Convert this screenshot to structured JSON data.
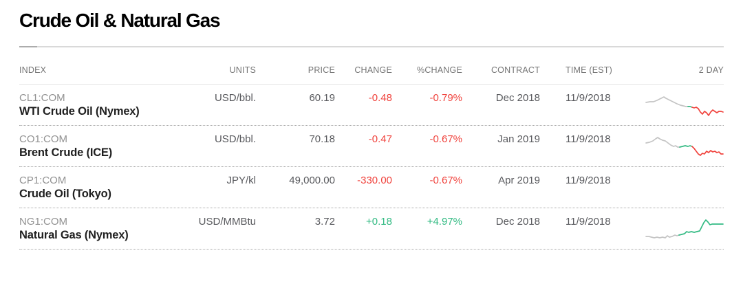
{
  "page": {
    "title": "Crude Oil & Natural Gas"
  },
  "table": {
    "columns": {
      "index": "INDEX",
      "units": "UNITS",
      "price": "PRICE",
      "change": "CHANGE",
      "pct_change": "%CHANGE",
      "contract": "CONTRACT",
      "time": "TIME (EST)",
      "two_day": "2 DAY"
    },
    "rows": [
      {
        "ticker": "CL1:COM",
        "name": "WTI Crude Oil (Nymex)",
        "units": "USD/bbl.",
        "price": "60.19",
        "change": "-0.48",
        "pct_change": "-0.79%",
        "direction": "down",
        "contract": "Dec 2018",
        "time": "11/9/2018",
        "sparkline_id": "wti"
      },
      {
        "ticker": "CO1:COM",
        "name": "Brent Crude (ICE)",
        "units": "USD/bbl.",
        "price": "70.18",
        "change": "-0.47",
        "pct_change": "-0.67%",
        "direction": "down",
        "contract": "Jan 2019",
        "time": "11/9/2018",
        "sparkline_id": "brent"
      },
      {
        "ticker": "CP1:COM",
        "name": "Crude Oil (Tokyo)",
        "units": "JPY/kl",
        "price": "49,000.00",
        "change": "-330.00",
        "pct_change": "-0.67%",
        "direction": "down",
        "contract": "Apr 2019",
        "time": "11/9/2018",
        "sparkline_id": null
      },
      {
        "ticker": "NG1:COM",
        "name": "Natural Gas (Nymex)",
        "units": "USD/MMBtu",
        "price": "3.72",
        "change": "+0.18",
        "pct_change": "+4.97%",
        "direction": "up",
        "contract": "Dec 2018",
        "time": "11/9/2018",
        "sparkline_id": "natgas"
      }
    ]
  },
  "colors": {
    "up": "#31ba82",
    "down": "#f0423c",
    "gray": "#c4c4c4",
    "green": "#31ba82",
    "red": "#f0423c"
  },
  "chart_data": [
    {
      "id": "wti",
      "type": "line",
      "title": "WTI Crude Oil (Nymex) 2 day trend",
      "trend": "down",
      "axes": "none",
      "segments": [
        {
          "color": "gray",
          "points": [
            [
              2,
              13
            ],
            [
              8,
              12
            ],
            [
              13,
              12
            ],
            [
              18,
              10
            ],
            [
              24,
              7
            ],
            [
              28,
              5
            ],
            [
              31,
              7
            ],
            [
              35,
              9
            ],
            [
              39,
              11
            ],
            [
              43,
              13
            ],
            [
              47,
              15
            ],
            [
              52,
              17
            ],
            [
              56,
              18
            ],
            [
              60,
              19
            ],
            [
              63,
              19
            ]
          ]
        },
        {
          "color": "green",
          "points": [
            [
              63,
              19
            ],
            [
              66,
              19
            ],
            [
              69,
              20
            ]
          ]
        },
        {
          "color": "red",
          "points": [
            [
              69,
              20
            ],
            [
              72,
              21
            ],
            [
              75,
              20
            ],
            [
              78,
              22
            ],
            [
              81,
              27
            ],
            [
              84,
              30
            ],
            [
              87,
              26
            ],
            [
              90,
              28
            ],
            [
              93,
              32
            ],
            [
              96,
              27
            ],
            [
              99,
              24
            ],
            [
              102,
              26
            ],
            [
              105,
              28
            ],
            [
              108,
              26
            ],
            [
              111,
              26
            ],
            [
              114,
              27
            ]
          ]
        }
      ]
    },
    {
      "id": "brent",
      "type": "line",
      "title": "Brent Crude (ICE) 2 day trend",
      "trend": "down",
      "axes": "none",
      "segments": [
        {
          "color": "gray",
          "points": [
            [
              2,
              12
            ],
            [
              7,
              11
            ],
            [
              12,
              9
            ],
            [
              16,
              6
            ],
            [
              19,
              4
            ],
            [
              22,
              6
            ],
            [
              26,
              8
            ],
            [
              30,
              9
            ],
            [
              34,
              12
            ],
            [
              38,
              15
            ],
            [
              42,
              17
            ],
            [
              45,
              16
            ],
            [
              48,
              18
            ],
            [
              51,
              18
            ]
          ]
        },
        {
          "color": "green",
          "points": [
            [
              51,
              18
            ],
            [
              55,
              17
            ],
            [
              59,
              16
            ],
            [
              63,
              17
            ],
            [
              66,
              16
            ],
            [
              69,
              17
            ]
          ]
        },
        {
          "color": "red",
          "points": [
            [
              69,
              17
            ],
            [
              72,
              20
            ],
            [
              75,
              24
            ],
            [
              78,
              28
            ],
            [
              81,
              30
            ],
            [
              84,
              27
            ],
            [
              87,
              28
            ],
            [
              90,
              24
            ],
            [
              93,
              26
            ],
            [
              96,
              23
            ],
            [
              99,
              25
            ],
            [
              102,
              24
            ],
            [
              105,
              26
            ],
            [
              108,
              25
            ],
            [
              111,
              28
            ],
            [
              114,
              28
            ]
          ]
        }
      ]
    },
    {
      "id": "natgas",
      "type": "line",
      "title": "Natural Gas (Nymex) 2 day trend",
      "trend": "up",
      "axes": "none",
      "segments": [
        {
          "color": "gray",
          "points": [
            [
              2,
              28
            ],
            [
              6,
              28
            ],
            [
              10,
              29
            ],
            [
              14,
              30
            ],
            [
              18,
              29
            ],
            [
              22,
              30
            ],
            [
              26,
              29
            ],
            [
              30,
              30
            ],
            [
              33,
              27
            ],
            [
              36,
              29
            ],
            [
              40,
              28
            ],
            [
              44,
              26
            ],
            [
              47,
              27
            ],
            [
              50,
              26
            ]
          ]
        },
        {
          "color": "green",
          "points": [
            [
              50,
              26
            ],
            [
              54,
              25
            ],
            [
              58,
              24
            ],
            [
              61,
              21
            ],
            [
              64,
              22
            ],
            [
              68,
              21
            ],
            [
              72,
              22
            ],
            [
              76,
              21
            ],
            [
              80,
              20
            ],
            [
              83,
              14
            ],
            [
              86,
              8
            ],
            [
              89,
              4
            ],
            [
              92,
              7
            ],
            [
              95,
              11
            ],
            [
              98,
              10
            ],
            [
              101,
              10
            ],
            [
              105,
              10
            ],
            [
              108,
              10
            ],
            [
              111,
              10
            ],
            [
              114,
              10
            ]
          ]
        }
      ]
    }
  ]
}
